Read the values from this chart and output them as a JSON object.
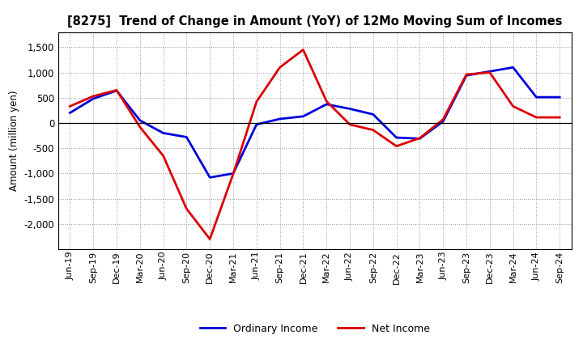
{
  "title": "[8275]  Trend of Change in Amount (YoY) of 12Mo Moving Sum of Incomes",
  "ylabel": "Amount (million yen)",
  "background_color": "#ffffff",
  "grid_color": "#999999",
  "xlabels": [
    "Jun-19",
    "Sep-19",
    "Dec-19",
    "Mar-20",
    "Jun-20",
    "Sep-20",
    "Dec-20",
    "Mar-21",
    "Jun-21",
    "Sep-21",
    "Dec-21",
    "Mar-22",
    "Jun-22",
    "Sep-22",
    "Dec-22",
    "Mar-23",
    "Jun-23",
    "Sep-23",
    "Dec-23",
    "Mar-24",
    "Jun-24",
    "Sep-24"
  ],
  "ordinary_income": [
    200,
    480,
    640,
    50,
    -200,
    -280,
    -1080,
    -1000,
    -30,
    80,
    130,
    370,
    280,
    170,
    -290,
    -310,
    30,
    940,
    1020,
    1100,
    510,
    510
  ],
  "net_income": [
    330,
    530,
    650,
    -80,
    -650,
    -1700,
    -2300,
    -1010,
    420,
    1100,
    1450,
    430,
    -30,
    -140,
    -460,
    -300,
    70,
    960,
    1000,
    330,
    110,
    110
  ],
  "ylim": [
    -2500,
    1800
  ],
  "yticks": [
    -2000,
    -1500,
    -1000,
    -500,
    0,
    500,
    1000,
    1500
  ],
  "ordinary_color": "#0000dd",
  "net_color": "#dd0000",
  "line_width": 2.0,
  "legend_labels": [
    "Ordinary Income",
    "Net Income"
  ]
}
